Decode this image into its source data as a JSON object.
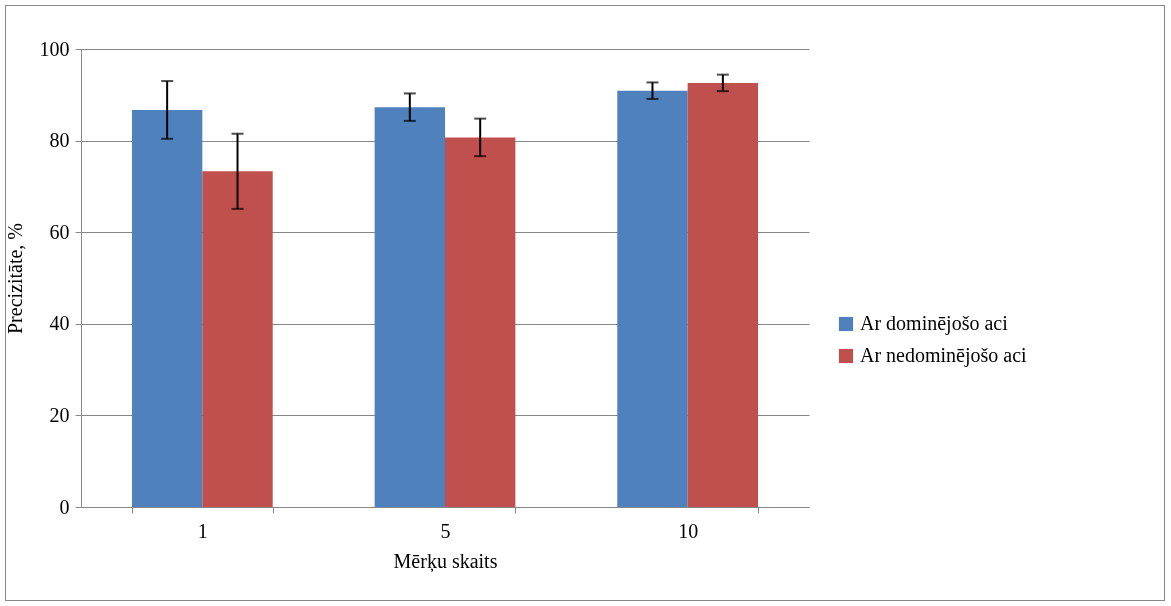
{
  "chart_data": {
    "type": "bar",
    "xlabel": "Mērķu skaits",
    "ylabel": "Precizitāte, %",
    "categories": [
      "1",
      "5",
      "10"
    ],
    "series": [
      {
        "name": "Ar dominējošo aci",
        "color": "#4f81bd",
        "values": [
          86.7,
          87.3,
          90.9
        ],
        "errors": [
          6.3,
          3.0,
          1.8
        ]
      },
      {
        "name": "Ar nedominējošo aci",
        "color": "#c0504d",
        "values": [
          73.3,
          80.7,
          92.6
        ],
        "errors": [
          8.2,
          4.1,
          1.8
        ]
      }
    ],
    "ylim": [
      0,
      100
    ],
    "yticks": [
      0,
      20,
      40,
      60,
      80,
      100
    ],
    "grid": "y",
    "legend": "right"
  }
}
